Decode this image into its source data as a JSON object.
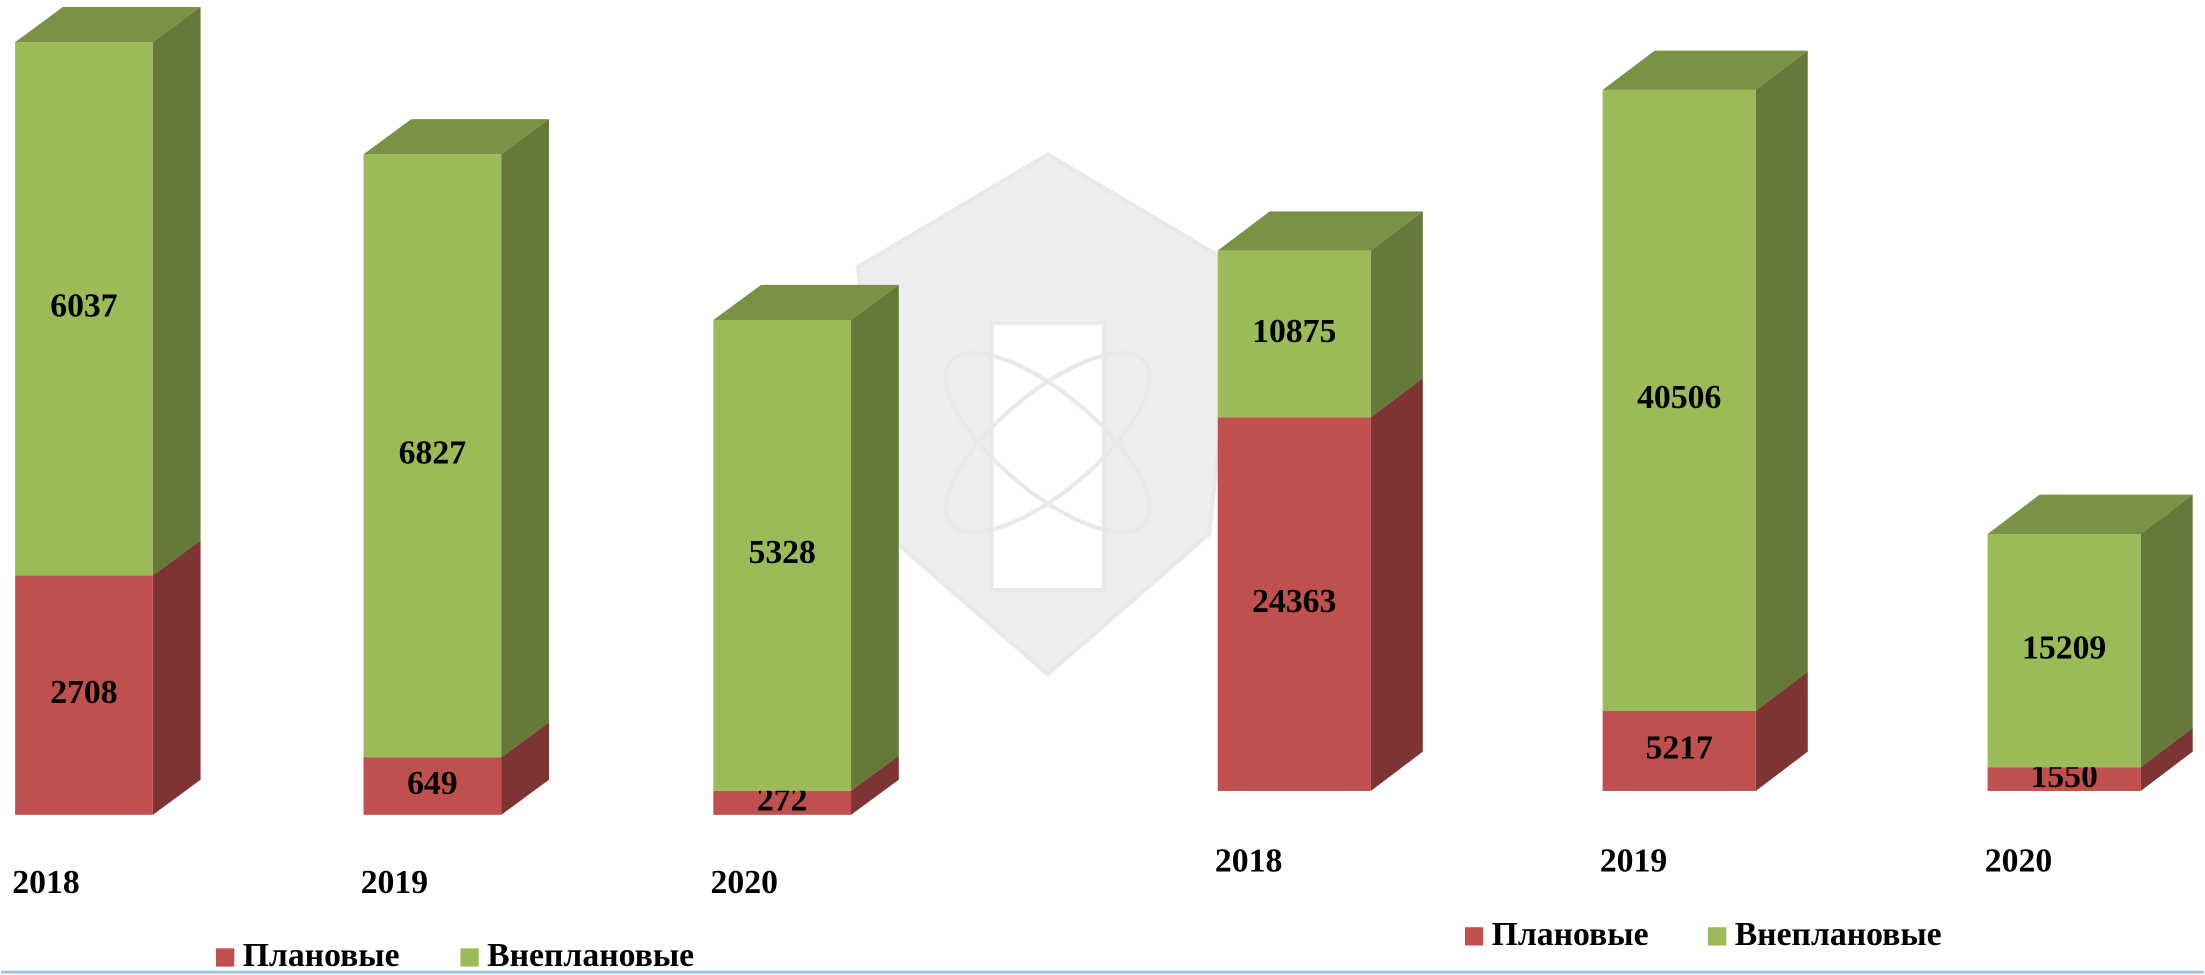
{
  "chart_data": [
    {
      "type": "bar",
      "stacked": true,
      "categories": [
        "2018",
        "2019",
        "2020"
      ],
      "series": [
        {
          "name": "Плановые",
          "color": "#c0504d",
          "values": [
            2708,
            649,
            272
          ]
        },
        {
          "name": "Внеплановые",
          "color": "#9bbb59",
          "values": [
            6037,
            6827,
            5328
          ]
        }
      ]
    },
    {
      "type": "bar",
      "stacked": true,
      "categories": [
        "2018",
        "2019",
        "2020"
      ],
      "series": [
        {
          "name": "Плановые",
          "color": "#c0504d",
          "values": [
            24363,
            5217,
            1550
          ]
        },
        {
          "name": "Внеплановые",
          "color": "#9bbb59",
          "values": [
            10875,
            40506,
            15209
          ]
        }
      ]
    }
  ]
}
